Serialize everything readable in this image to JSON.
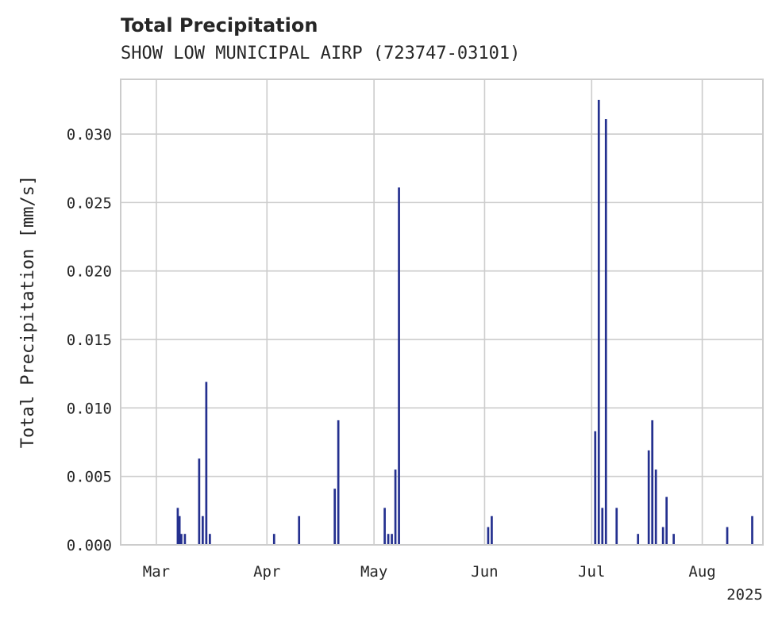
{
  "chart_data": {
    "type": "bar",
    "title": "Total Precipitation",
    "subtitle": "SHOW LOW MUNICIPAL AIRP (723747-03101)",
    "ylabel": "Total Precipitation [mm/s]",
    "xlabel": "",
    "x_year_label": "2025",
    "bar_color": "#24308f",
    "grid": true,
    "xlim": [
      "2025-02-19",
      "2025-08-18"
    ],
    "ylim": [
      0,
      0.034
    ],
    "yticks": [
      {
        "value": 0.0,
        "label": "0.000"
      },
      {
        "value": 0.005,
        "label": "0.005"
      },
      {
        "value": 0.01,
        "label": "0.010"
      },
      {
        "value": 0.015,
        "label": "0.015"
      },
      {
        "value": 0.02,
        "label": "0.020"
      },
      {
        "value": 0.025,
        "label": "0.025"
      },
      {
        "value": 0.03,
        "label": "0.030"
      }
    ],
    "xticks": [
      {
        "date": "2025-03-01",
        "label": "Mar"
      },
      {
        "date": "2025-04-01",
        "label": "Apr"
      },
      {
        "date": "2025-05-01",
        "label": "May"
      },
      {
        "date": "2025-06-01",
        "label": "Jun"
      },
      {
        "date": "2025-07-01",
        "label": "Jul"
      },
      {
        "date": "2025-08-01",
        "label": "Aug"
      }
    ],
    "points": [
      {
        "date": "2025-03-07",
        "value": 0.0027
      },
      {
        "date": "2025-03-07T12",
        "value": 0.0021
      },
      {
        "date": "2025-03-08",
        "value": 0.0008
      },
      {
        "date": "2025-03-09",
        "value": 0.0008
      },
      {
        "date": "2025-03-13",
        "value": 0.0063
      },
      {
        "date": "2025-03-14",
        "value": 0.0021
      },
      {
        "date": "2025-03-15",
        "value": 0.0119
      },
      {
        "date": "2025-03-16",
        "value": 0.0008
      },
      {
        "date": "2025-04-03",
        "value": 0.0008
      },
      {
        "date": "2025-04-10",
        "value": 0.0021
      },
      {
        "date": "2025-04-20",
        "value": 0.0041
      },
      {
        "date": "2025-04-21",
        "value": 0.0091
      },
      {
        "date": "2025-05-04",
        "value": 0.0027
      },
      {
        "date": "2025-05-05",
        "value": 0.0008
      },
      {
        "date": "2025-05-06",
        "value": 0.0008
      },
      {
        "date": "2025-05-07",
        "value": 0.0055
      },
      {
        "date": "2025-05-08",
        "value": 0.0261
      },
      {
        "date": "2025-06-02",
        "value": 0.0013
      },
      {
        "date": "2025-06-03",
        "value": 0.0021
      },
      {
        "date": "2025-07-02",
        "value": 0.0083
      },
      {
        "date": "2025-07-03",
        "value": 0.0325
      },
      {
        "date": "2025-07-04",
        "value": 0.0027
      },
      {
        "date": "2025-07-05",
        "value": 0.0311
      },
      {
        "date": "2025-07-08",
        "value": 0.0027
      },
      {
        "date": "2025-07-14",
        "value": 0.0008
      },
      {
        "date": "2025-07-17",
        "value": 0.0069
      },
      {
        "date": "2025-07-18",
        "value": 0.0091
      },
      {
        "date": "2025-07-19",
        "value": 0.0055
      },
      {
        "date": "2025-07-21",
        "value": 0.0013
      },
      {
        "date": "2025-07-22",
        "value": 0.0035
      },
      {
        "date": "2025-07-24",
        "value": 0.0008
      },
      {
        "date": "2025-08-08",
        "value": 0.0013
      },
      {
        "date": "2025-08-15",
        "value": 0.0021
      }
    ]
  }
}
